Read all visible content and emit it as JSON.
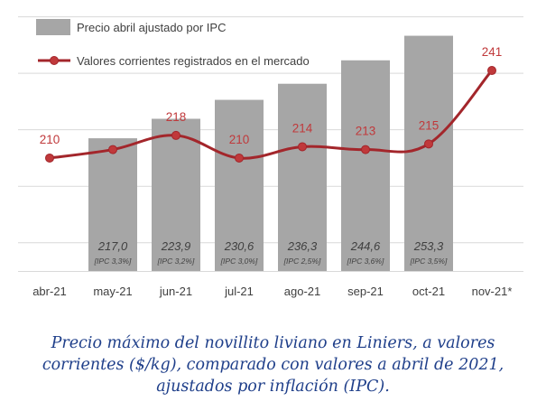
{
  "chart_data": {
    "type": "bar+line",
    "categories": [
      "abr-21",
      "may-21",
      "jun-21",
      "jul-21",
      "ago-21",
      "sep-21",
      "oct-21",
      "nov-21*"
    ],
    "series": [
      {
        "name": "Precio abril ajustado por IPC",
        "type": "bar",
        "values": [
          null,
          217.0,
          223.9,
          230.6,
          236.3,
          244.6,
          253.3,
          null
        ],
        "value_labels": [
          "",
          "217,0",
          "223,9",
          "230,6",
          "236,3",
          "244,6",
          "253,3",
          ""
        ],
        "ipc_labels": [
          "",
          "[IPC 3,3%]",
          "[IPC 3,2%]",
          "[IPC 3,0%]",
          "[IPC 2,5%]",
          "[IPC 3,6%]",
          "[IPC 3,5%]",
          ""
        ],
        "color": "#a6a6a6"
      },
      {
        "name": "Valores corrientes registrados en el mercado",
        "type": "line",
        "values": [
          210,
          213,
          218,
          210,
          214,
          213,
          215,
          241
        ],
        "labeled": [
          "210",
          "",
          "218",
          "210",
          "214",
          "213",
          "215",
          "241"
        ],
        "color": "#a3262b",
        "label_color": "#c0393b"
      }
    ],
    "ylim": [
      170,
      265
    ],
    "grid": true,
    "legend": "top-left",
    "xlabel": "",
    "ylabel": ""
  },
  "caption": "Precio máximo del novillito liviano en Liniers, a valores corrientes ($/kg), comparado con valores a abril de 2021, ajustados por inflación (IPC)."
}
